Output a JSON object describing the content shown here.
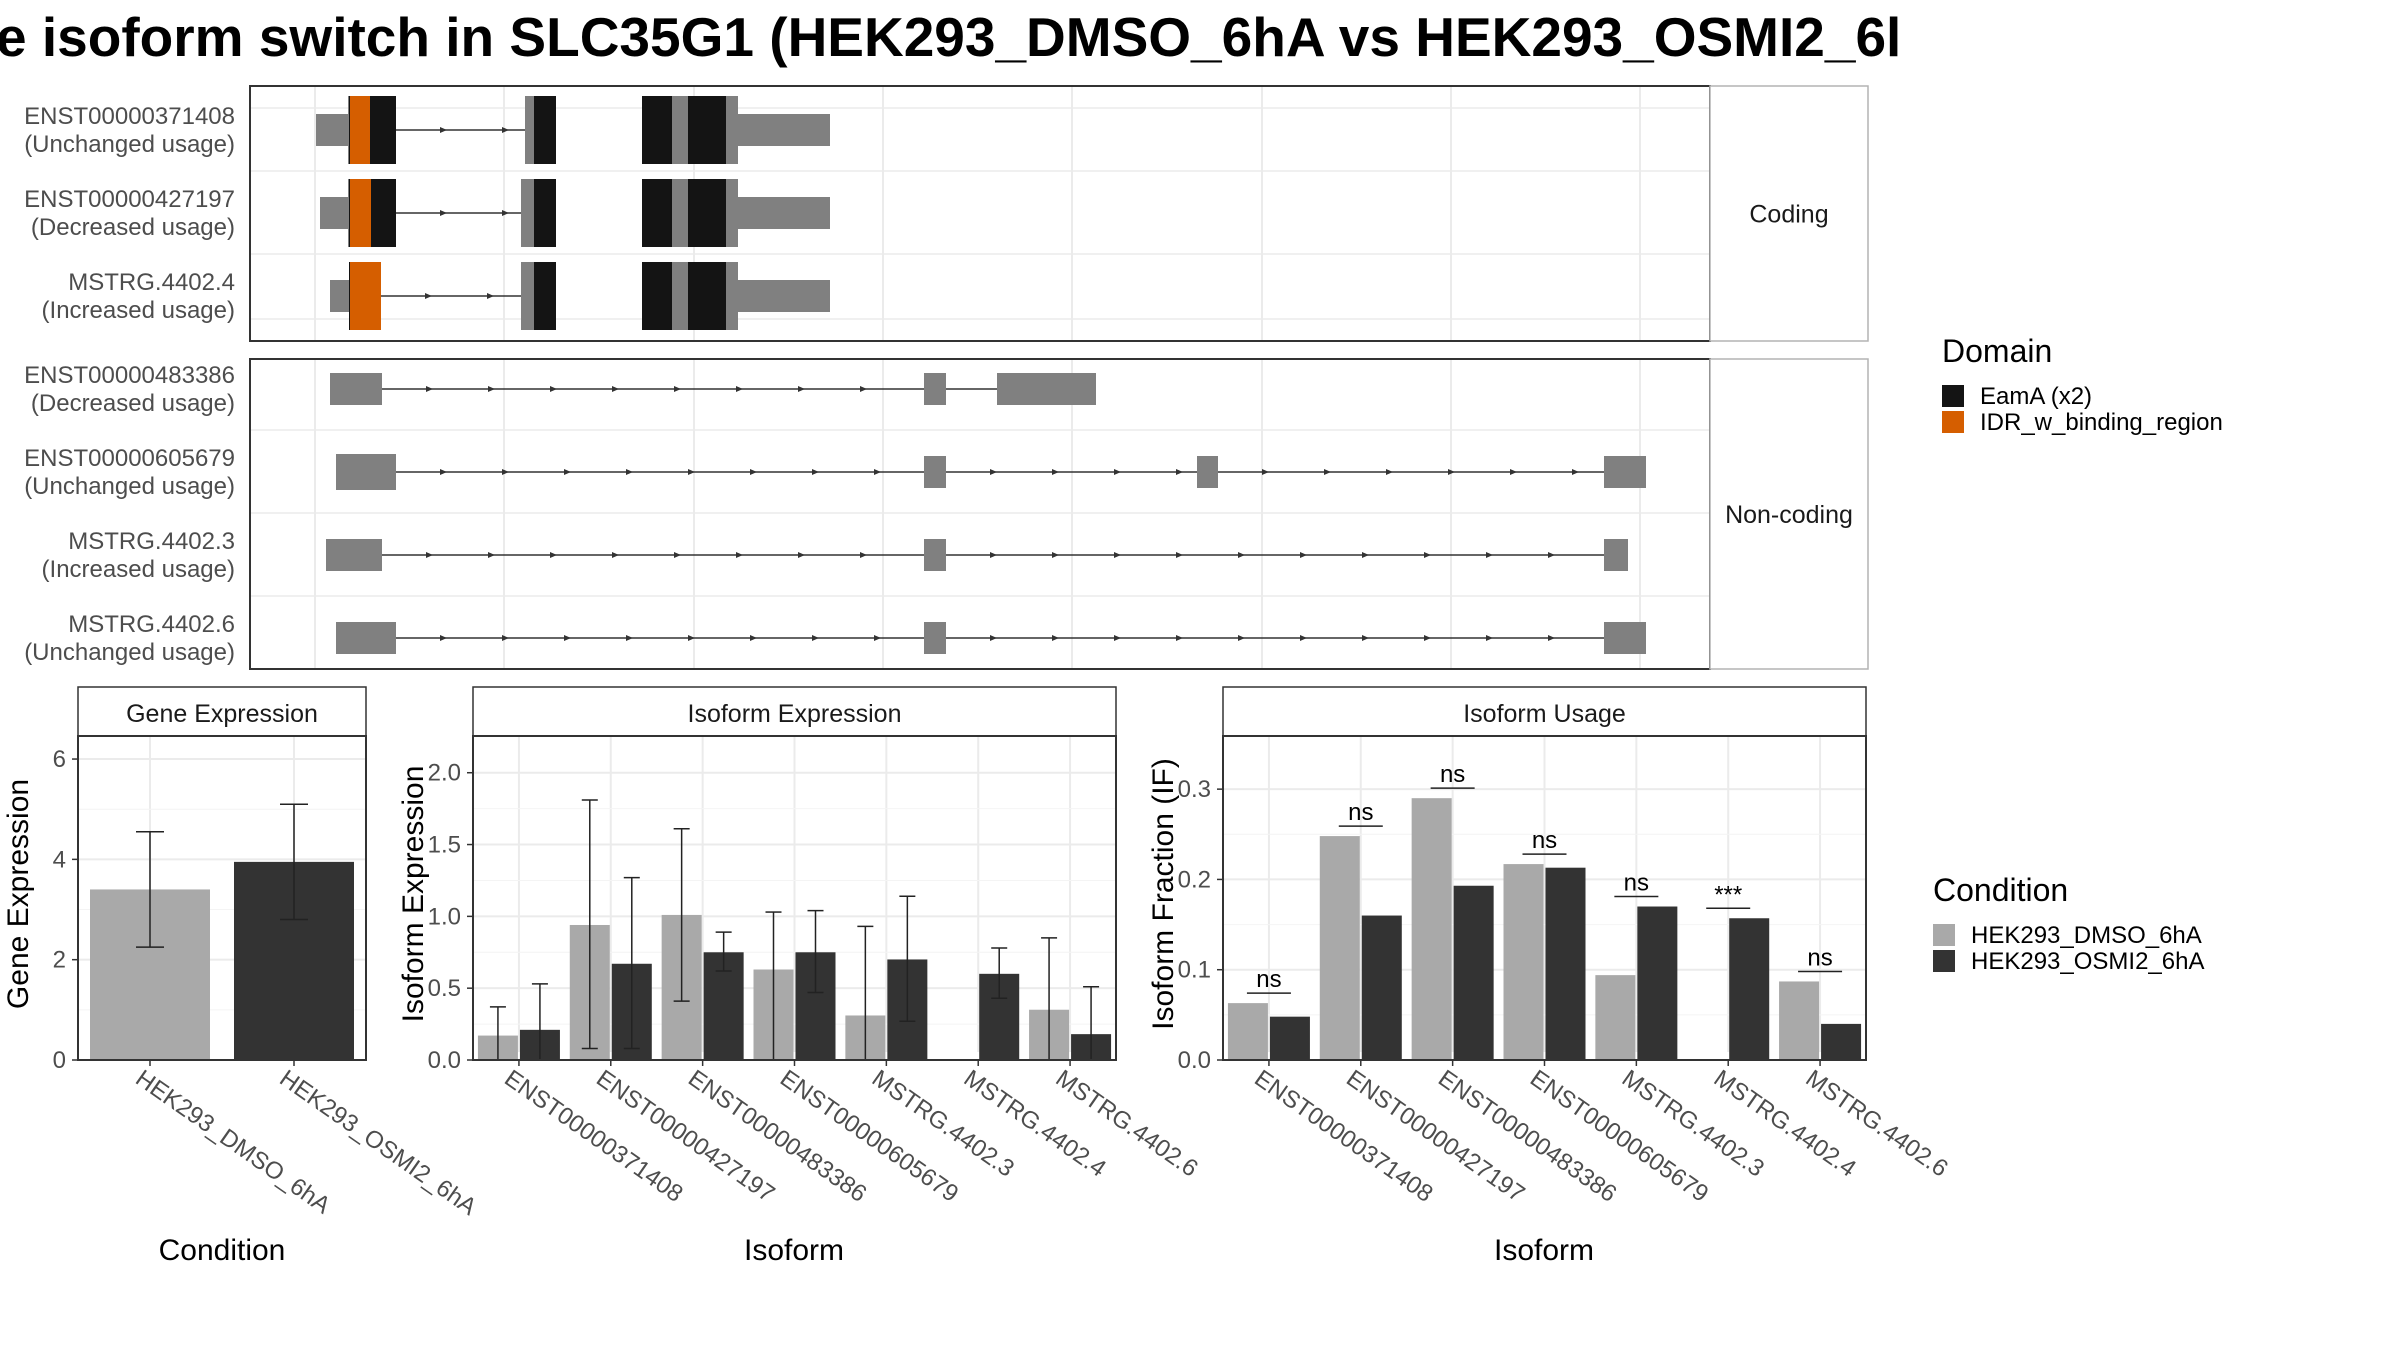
{
  "title": "e isoform switch in SLC35G1 (HEK293_DMSO_6hA vs HEK293_OSMI2_6l",
  "colors": {
    "exon": "#808080",
    "eama_domain": "#141414",
    "idr_domain": "#D55E00",
    "dmso": "#a9a9a9",
    "osmi2": "#333333",
    "grid": "#ebebeb",
    "strip_bg": "#ffffff"
  },
  "structure": {
    "groups": [
      {
        "label": "Coding",
        "isoforms": [
          {
            "id": "ENST00000371408",
            "usage": "(Unchanged usage)"
          },
          {
            "id": "ENST00000427197",
            "usage": "(Decreased usage)"
          },
          {
            "id": "MSTRG.4402.4",
            "usage": "(Increased usage)"
          }
        ]
      },
      {
        "label": "Non-coding",
        "isoforms": [
          {
            "id": "ENST00000483386",
            "usage": "(Decreased usage)"
          },
          {
            "id": "ENST00000605679",
            "usage": "(Unchanged usage)"
          },
          {
            "id": "MSTRG.4402.3",
            "usage": "(Increased usage)"
          },
          {
            "id": "MSTRG.4402.6",
            "usage": "(Unchanged usage)"
          }
        ]
      }
    ]
  },
  "legend_domain": {
    "title": "Domain",
    "items": [
      {
        "label": "EamA (x2)",
        "color": "#141414"
      },
      {
        "label": "IDR_w_binding_region",
        "color": "#D55E00"
      }
    ]
  },
  "legend_condition": {
    "title": "Condition",
    "items": [
      {
        "label": "HEK293_DMSO_6hA",
        "color": "#a9a9a9"
      },
      {
        "label": "HEK293_OSMI2_6hA",
        "color": "#333333"
      }
    ]
  },
  "chart_data": [
    {
      "type": "bar",
      "title": "Gene Expression",
      "xlabel": "Condition",
      "ylabel": "Gene Expression",
      "ylim": [
        0,
        6.3
      ],
      "yticks": [
        0,
        2,
        4,
        6
      ],
      "categories": [
        "HEK293_DMSO_6hA",
        "HEK293_OSMI2_6hA"
      ],
      "values": [
        3.4,
        3.95
      ],
      "error_low": [
        2.25,
        2.8
      ],
      "error_high": [
        4.55,
        5.1
      ]
    },
    {
      "type": "bar",
      "title": "Isoform Expression",
      "xlabel": "Isoform",
      "ylabel": "Isoform Expression",
      "ylim": [
        0,
        2.2
      ],
      "yticks": [
        0.0,
        0.5,
        1.0,
        1.5,
        2.0
      ],
      "categories": [
        "ENST00000371408",
        "ENST00000427197",
        "ENST00000483386",
        "ENST00000605679",
        "MSTRG.4402.3",
        "MSTRG.4402.4",
        "MSTRG.4402.6"
      ],
      "series": [
        {
          "name": "HEK293_DMSO_6hA",
          "values": [
            0.17,
            0.94,
            1.01,
            0.63,
            0.31,
            0.0,
            0.35
          ],
          "error_low": [
            0.0,
            0.08,
            0.41,
            0.0,
            0.0,
            0.0,
            0.0
          ],
          "error_high": [
            0.37,
            1.81,
            1.61,
            1.03,
            0.93,
            0.0,
            0.85
          ]
        },
        {
          "name": "HEK293_OSMI2_6hA",
          "values": [
            0.21,
            0.67,
            0.75,
            0.75,
            0.7,
            0.6,
            0.18
          ],
          "error_low": [
            0.0,
            0.08,
            0.62,
            0.47,
            0.27,
            0.43,
            0.0
          ],
          "error_high": [
            0.53,
            1.27,
            0.89,
            1.04,
            1.14,
            0.78,
            0.51
          ]
        }
      ]
    },
    {
      "type": "bar",
      "title": "Isoform Usage",
      "xlabel": "Isoform",
      "ylabel": "Isoform Fraction (IF)",
      "ylim": [
        0,
        0.35
      ],
      "yticks": [
        0.0,
        0.1,
        0.2,
        0.3
      ],
      "categories": [
        "ENST00000371408",
        "ENST00000427197",
        "ENST00000483386",
        "ENST00000605679",
        "MSTRG.4402.3",
        "MSTRG.4402.4",
        "MSTRG.4402.6"
      ],
      "series": [
        {
          "name": "HEK293_DMSO_6hA",
          "values": [
            0.063,
            0.248,
            0.29,
            0.217,
            0.094,
            0.0,
            0.087
          ]
        },
        {
          "name": "HEK293_OSMI2_6hA",
          "values": [
            0.048,
            0.16,
            0.193,
            0.213,
            0.17,
            0.157,
            0.04
          ]
        }
      ],
      "significance": [
        "ns",
        "ns",
        "ns",
        "ns",
        "ns",
        "***",
        "ns"
      ]
    }
  ]
}
